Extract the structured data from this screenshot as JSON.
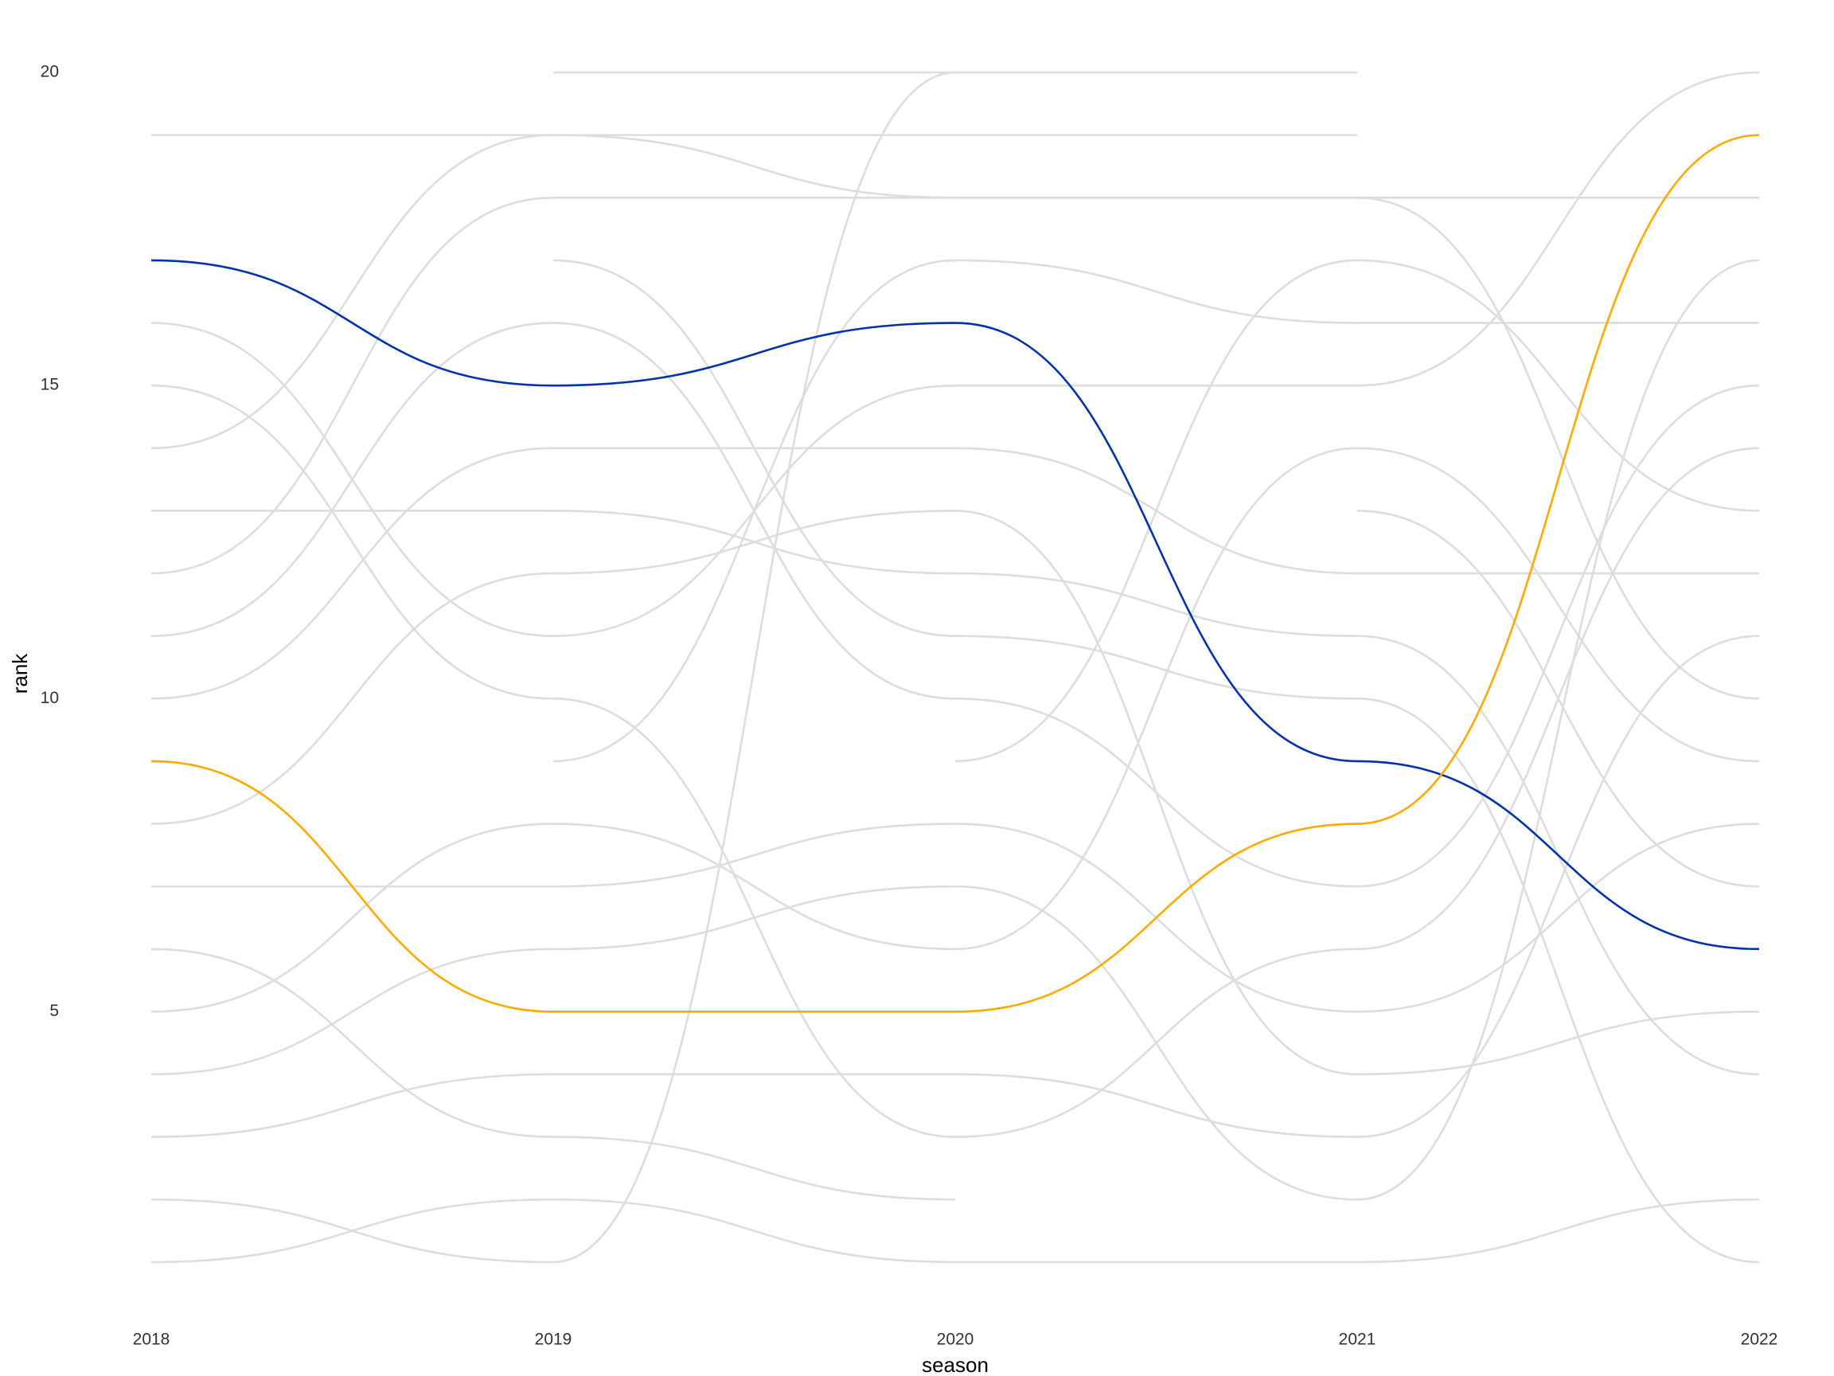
{
  "chart_data": {
    "type": "bump",
    "x_label": "season",
    "y_label": "rank",
    "x": [
      2018,
      2019,
      2020,
      2021,
      2022
    ],
    "xlim": [
      2018,
      2022
    ],
    "xticks": [
      2018,
      2019,
      2020,
      2021,
      2022
    ],
    "ylim": [
      1,
      20
    ],
    "yticks": [
      5,
      10,
      15,
      20
    ],
    "grid": false,
    "series": [
      {
        "color": "#dddddd",
        "values": [
          19,
          19,
          18,
          18,
          10
        ]
      },
      {
        "color": "#dddddd",
        "values": [
          14,
          19,
          19,
          19,
          null
        ]
      },
      {
        "color": "#dddddd",
        "values": [
          null,
          20,
          20,
          20,
          null
        ]
      },
      {
        "color": "#dddddd",
        "values": [
          12,
          18,
          18,
          18,
          18
        ]
      },
      {
        "color": "#dddddd",
        "values": [
          null,
          17,
          11,
          10,
          1
        ]
      },
      {
        "color": "#dddddd",
        "values": [
          11,
          16,
          10,
          7,
          15
        ]
      },
      {
        "color": "#dddddd",
        "values": [
          10,
          14,
          14,
          12,
          12
        ]
      },
      {
        "color": "#dddddd",
        "values": [
          13,
          13,
          12,
          11,
          4
        ]
      },
      {
        "color": "#dddddd",
        "values": [
          8,
          12,
          13,
          4,
          5
        ]
      },
      {
        "color": "#dddddd",
        "values": [
          16,
          11,
          15,
          15,
          20
        ]
      },
      {
        "color": "#dddddd",
        "values": [
          15,
          10,
          3,
          6,
          14
        ]
      },
      {
        "color": "#dddddd",
        "values": [
          null,
          9,
          17,
          16,
          16
        ]
      },
      {
        "color": "#dddddd",
        "values": [
          5,
          8,
          6,
          14,
          9
        ]
      },
      {
        "color": "#dddddd",
        "values": [
          7,
          7,
          8,
          5,
          8
        ]
      },
      {
        "color": "#dddddd",
        "values": [
          4,
          6,
          7,
          2,
          17
        ]
      },
      {
        "color": "#dddddd",
        "values": [
          3,
          4,
          4,
          3,
          11
        ]
      },
      {
        "color": "#dddddd",
        "values": [
          6,
          3,
          2,
          null,
          null
        ]
      },
      {
        "color": "#dddddd",
        "values": [
          1,
          2,
          1,
          1,
          2
        ]
      },
      {
        "color": "#dddddd",
        "values": [
          2,
          1,
          20,
          null,
          null
        ]
      },
      {
        "color": "#dddddd",
        "values": [
          null,
          null,
          9,
          17,
          13
        ]
      },
      {
        "color": "#dddddd",
        "values": [
          null,
          null,
          null,
          13,
          7
        ]
      },
      {
        "color": "#0033aa",
        "values": [
          17,
          15,
          16,
          9,
          6
        ]
      },
      {
        "color": "#ffaa00",
        "values": [
          9,
          5,
          5,
          8,
          19
        ]
      }
    ]
  }
}
